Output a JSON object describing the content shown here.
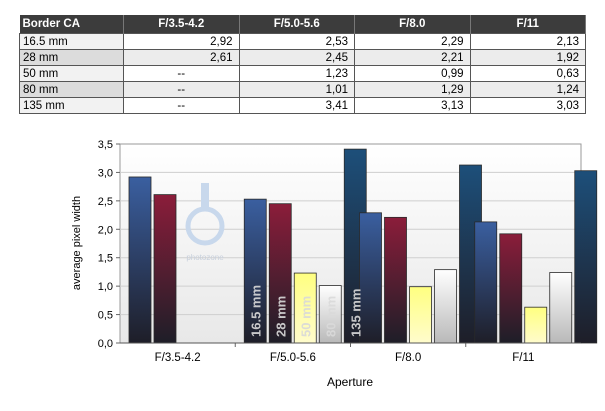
{
  "table": {
    "headers": [
      "Border CA",
      "F/3.5-4.2",
      "F/5.0-5.6",
      "F/8.0",
      "F/11"
    ],
    "rows": [
      [
        "16.5 mm",
        "2,92",
        "2,53",
        "2,29",
        "2,13"
      ],
      [
        "28 mm",
        "2,61",
        "2,45",
        "2,21",
        "1,92"
      ],
      [
        "50 mm",
        "--",
        "1,23",
        "0,99",
        "0,63"
      ],
      [
        "80 mm",
        "--",
        "1,01",
        "1,29",
        "1,24"
      ],
      [
        "135 mm",
        "--",
        "3,41",
        "3,13",
        "3,03"
      ]
    ]
  },
  "chart_data": {
    "type": "bar",
    "categories": [
      "F/3.5-4.2",
      "F/5.0-5.6",
      "F/8.0",
      "F/11"
    ],
    "series": [
      {
        "name": "16.5 mm",
        "values": [
          2.92,
          2.53,
          2.29,
          2.13
        ],
        "color": "#3a5fa0"
      },
      {
        "name": "28 mm",
        "values": [
          2.61,
          2.45,
          2.21,
          1.92
        ],
        "color": "#8b1d3a"
      },
      {
        "name": "50 mm",
        "values": [
          null,
          1.23,
          0.99,
          0.63
        ],
        "color": "#ffff80"
      },
      {
        "name": "80 mm",
        "values": [
          null,
          1.01,
          1.29,
          1.24
        ],
        "color": "#ffffff"
      },
      {
        "name": "135 mm",
        "values": [
          null,
          3.41,
          3.13,
          3.03
        ],
        "color": "#1d4f7a"
      }
    ],
    "title": "",
    "xlabel": "Aperture",
    "ylabel": "average pixel width",
    "ylim": [
      0,
      3.5
    ],
    "yticks": [
      "0,0",
      "0,5",
      "1,0",
      "1,5",
      "2,0",
      "2,5",
      "3,0",
      "3,5"
    ],
    "grid": true,
    "watermark": "photozone"
  }
}
